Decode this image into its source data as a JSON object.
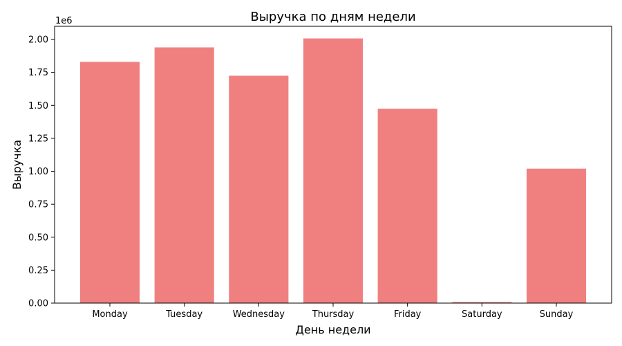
{
  "chart_data": {
    "type": "bar",
    "title": "Выручка по дням недели",
    "xlabel": "День недели",
    "ylabel": "Выручка",
    "categories": [
      "Monday",
      "Tuesday",
      "Wednesday",
      "Thursday",
      "Friday",
      "Saturday",
      "Sunday"
    ],
    "values": [
      1830000,
      1940000,
      1725000,
      2008000,
      1475000,
      8000,
      1020000
    ],
    "ylim": [
      0,
      2100000
    ],
    "y_ticks": [
      "0.00",
      "0.25",
      "0.50",
      "0.75",
      "1.00",
      "1.25",
      "1.50",
      "1.75",
      "2.00"
    ],
    "y_tick_values": [
      0,
      250000,
      500000,
      750000,
      1000000,
      1250000,
      1500000,
      1750000,
      2000000
    ],
    "y_exponent_label": "1e6",
    "bar_color": "#f08080",
    "grid": false,
    "legend": "none"
  }
}
